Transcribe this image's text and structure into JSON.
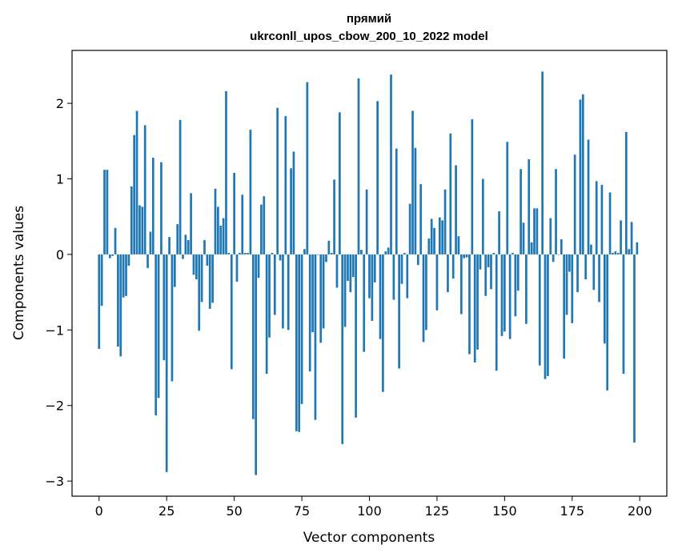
{
  "chart_data": {
    "type": "bar",
    "title": "прямий",
    "subtitle": "ukrconll_upos_cbow_200_10_2022 model",
    "xlabel": "Vector components",
    "ylabel": "Components values",
    "xlim": [
      -10,
      210
    ],
    "ylim": [
      -3.2,
      2.7
    ],
    "x_ticks": [
      0,
      25,
      50,
      75,
      100,
      125,
      150,
      175,
      200
    ],
    "y_ticks": [
      -3,
      -2,
      -1,
      0,
      1,
      2
    ],
    "y_tick_labels": [
      "−3",
      "−2",
      "−1",
      "0",
      "1",
      "2"
    ],
    "grid": false,
    "bar_color": "#1f77b4",
    "x": [
      0,
      1,
      2,
      3,
      4,
      5,
      6,
      7,
      8,
      9,
      10,
      11,
      12,
      13,
      14,
      15,
      16,
      17,
      18,
      19,
      20,
      21,
      22,
      23,
      24,
      25,
      26,
      27,
      28,
      29,
      30,
      31,
      32,
      33,
      34,
      35,
      36,
      37,
      38,
      39,
      40,
      41,
      42,
      43,
      44,
      45,
      46,
      47,
      48,
      49,
      50,
      51,
      52,
      53,
      54,
      55,
      56,
      57,
      58,
      59,
      60,
      61,
      62,
      63,
      64,
      65,
      66,
      67,
      68,
      69,
      70,
      71,
      72,
      73,
      74,
      75,
      76,
      77,
      78,
      79,
      80,
      81,
      82,
      83,
      84,
      85,
      86,
      87,
      88,
      89,
      90,
      91,
      92,
      93,
      94,
      95,
      96,
      97,
      98,
      99,
      100,
      101,
      102,
      103,
      104,
      105,
      106,
      107,
      108,
      109,
      110,
      111,
      112,
      113,
      114,
      115,
      116,
      117,
      118,
      119,
      120,
      121,
      122,
      123,
      124,
      125,
      126,
      127,
      128,
      129,
      130,
      131,
      132,
      133,
      134,
      135,
      136,
      137,
      138,
      139,
      140,
      141,
      142,
      143,
      144,
      145,
      146,
      147,
      148,
      149,
      150,
      151,
      152,
      153,
      154,
      155,
      156,
      157,
      158,
      159,
      160,
      161,
      162,
      163,
      164,
      165,
      166,
      167,
      168,
      169,
      170,
      171,
      172,
      173,
      174,
      175,
      176,
      177,
      178,
      179,
      180,
      181,
      182,
      183,
      184,
      185,
      186,
      187,
      188,
      189,
      190,
      191,
      192,
      193,
      194,
      195,
      196,
      197,
      198,
      199
    ],
    "values": [
      -1.25,
      -0.68,
      1.12,
      1.12,
      -0.05,
      -0.02,
      0.35,
      -1.22,
      -1.35,
      -0.57,
      -0.55,
      -0.15,
      0.9,
      1.58,
      1.9,
      0.65,
      0.63,
      1.71,
      -0.18,
      0.3,
      1.28,
      -2.13,
      -1.9,
      1.22,
      -1.4,
      -2.88,
      0.23,
      -1.68,
      -0.43,
      0.4,
      1.78,
      -0.06,
      0.26,
      0.19,
      0.81,
      -0.27,
      -0.33,
      -1.01,
      -0.63,
      0.19,
      -0.15,
      -0.72,
      -0.64,
      0.87,
      0.63,
      0.38,
      0.48,
      2.16,
      0.02,
      -1.52,
      1.08,
      -0.36,
      0.02,
      0.79,
      0.02,
      0.02,
      1.65,
      -2.18,
      -2.92,
      -0.31,
      0.66,
      0.77,
      -1.58,
      -1.1,
      0.02,
      -0.8,
      1.94,
      -0.08,
      -0.98,
      1.83,
      -1.0,
      1.14,
      1.36,
      -2.34,
      -2.35,
      -1.98,
      0.07,
      2.28,
      -1.55,
      -1.03,
      -2.19,
      0.0,
      -1.17,
      -0.98,
      -0.1,
      0.18,
      0.02,
      0.99,
      -0.44,
      1.88,
      -2.51,
      -0.96,
      -0.35,
      -0.5,
      -0.3,
      -2.16,
      2.33,
      0.06,
      -1.29,
      0.86,
      -0.58,
      -0.88,
      -0.37,
      2.03,
      -1.12,
      -1.82,
      0.04,
      0.09,
      2.38,
      -0.6,
      1.4,
      -1.51,
      -0.39,
      0.02,
      -0.58,
      0.67,
      1.9,
      1.41,
      -0.14,
      0.93,
      -1.16,
      -1.0,
      0.21,
      0.47,
      0.35,
      -0.74,
      0.49,
      0.45,
      0.86,
      -0.5,
      1.6,
      -0.32,
      1.18,
      0.24,
      -0.79,
      -0.05,
      -0.04,
      -1.32,
      1.79,
      -1.43,
      -1.26,
      -0.2,
      1.0,
      -0.55,
      -0.17,
      -0.46,
      0.02,
      -1.54,
      0.57,
      -1.08,
      -1.02,
      1.49,
      -1.12,
      0.02,
      -0.82,
      -0.48,
      1.13,
      0.42,
      -0.92,
      1.26,
      0.16,
      0.61,
      0.61,
      -1.47,
      2.42,
      -1.65,
      -1.61,
      0.48,
      -0.1,
      1.13,
      0.0,
      0.2,
      -1.38,
      -0.8,
      -0.23,
      -0.91,
      1.32,
      -0.5,
      2.05,
      2.12,
      -0.33,
      1.52,
      0.13,
      -0.47,
      0.97,
      -0.63,
      0.92,
      -1.18,
      -1.8,
      0.82,
      0.02,
      0.04,
      0.02,
      0.45,
      -1.58,
      1.62,
      0.07,
      0.43,
      -2.49,
      0.16
    ]
  }
}
